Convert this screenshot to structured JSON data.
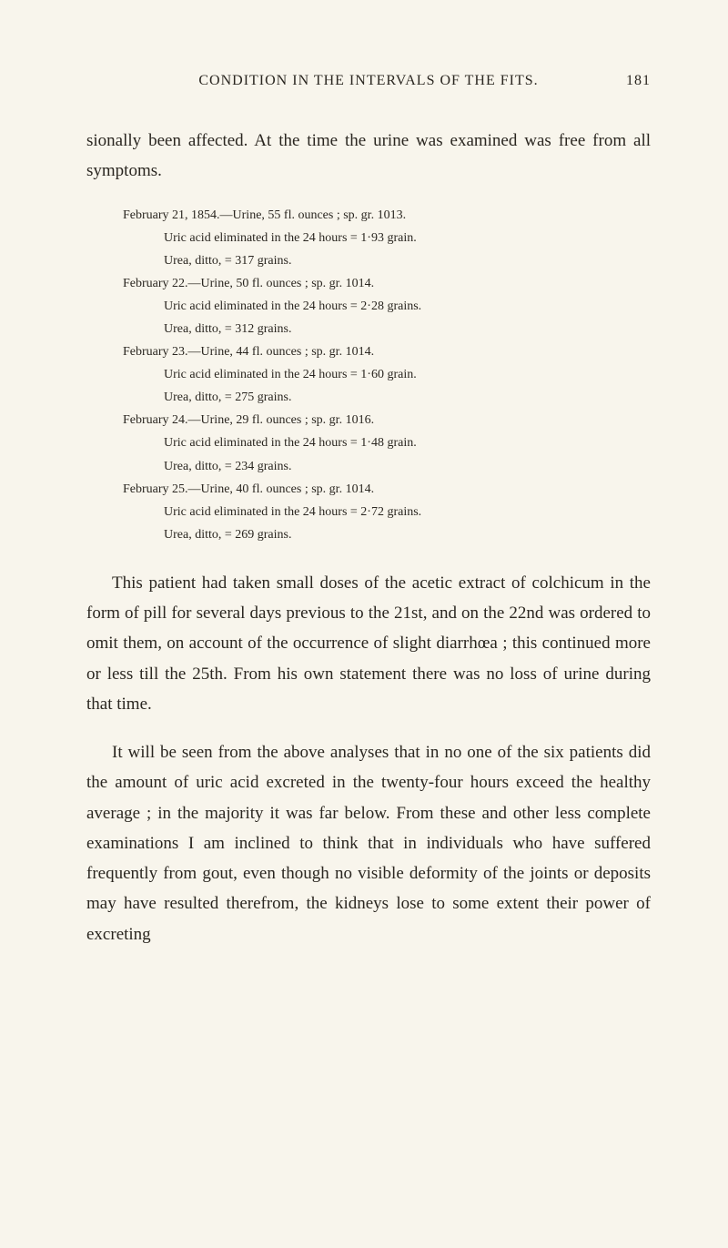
{
  "header": {
    "title": "CONDITION IN THE INTERVALS OF THE FITS.",
    "page_number": "181"
  },
  "paragraph1": "sionally been affected. At the time the urine was examined was free from all symptoms.",
  "data_entries": [
    {
      "line1": "February 21, 1854.—Urine, 55 fl. ounces ; sp. gr. 1013.",
      "line2": "Uric acid eliminated in the 24 hours = 1·93 grain.",
      "line3": "Urea,                    ditto,                    = 317 grains."
    },
    {
      "line1": "February 22.—Urine, 50 fl. ounces ; sp. gr. 1014.",
      "line2": "Uric acid eliminated in the 24 hours = 2·28 grains.",
      "line3": "Urea,                    ditto,                    = 312 grains."
    },
    {
      "line1": "February 23.—Urine, 44 fl. ounces ; sp. gr. 1014.",
      "line2": "Uric acid eliminated in the 24 hours = 1·60 grain.",
      "line3": "Urea,                    ditto,                    = 275 grains."
    },
    {
      "line1": "February 24.—Urine, 29 fl. ounces ; sp. gr. 1016.",
      "line2": "Uric acid eliminated in the 24 hours = 1·48 grain.",
      "line3": "Urea,                    ditto,                    = 234 grains."
    },
    {
      "line1": "February 25.—Urine, 40 fl. ounces ; sp. gr. 1014.",
      "line2": "Uric acid eliminated in the 24 hours = 2·72 grains.",
      "line3": "Urea,                    ditto,                    = 269 grains."
    }
  ],
  "paragraph2": "This patient had taken small doses of the acetic extract of colchicum in the form of pill for several days previous to the 21st, and on the 22nd was ordered to omit them, on account of the occurrence of slight diarrhœa ; this continued more or less till the 25th. From his own statement there was no loss of urine during that time.",
  "paragraph3": "It will be seen from the above analyses that in no one of the six patients did the amount of uric acid excreted in the twenty-four hours exceed the healthy average ; in the majority it was far below. From these and other less complete examinations I am inclined to think that in individuals who have suffered frequently from gout, even though no visible deformity of the joints or deposits may have resulted therefrom, the kidneys lose to some extent their power of excreting"
}
